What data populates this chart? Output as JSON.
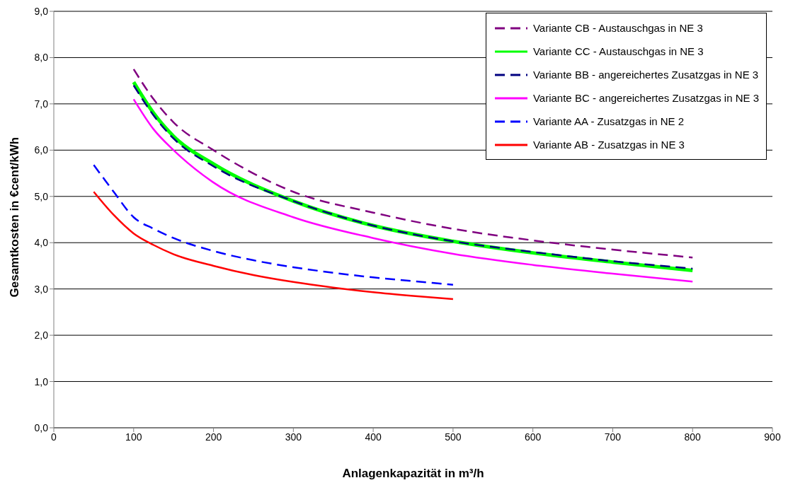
{
  "chart_data": {
    "type": "line",
    "xlabel": "Anlagenkapazität in m³/h",
    "ylabel": "Gesamtkosten in €cent/kWh",
    "xlim": [
      0,
      900
    ],
    "xticks": [
      0,
      100,
      200,
      300,
      400,
      500,
      600,
      700,
      800,
      900
    ],
    "ylim": [
      0,
      9
    ],
    "yticks": [
      {
        "value": 0,
        "label": "0,0"
      },
      {
        "value": 1,
        "label": "1,0"
      },
      {
        "value": 2,
        "label": "2,0"
      },
      {
        "value": 3,
        "label": "3,0"
      },
      {
        "value": 4,
        "label": "4,0"
      },
      {
        "value": 5,
        "label": "5,0"
      },
      {
        "value": 6,
        "label": "6,0"
      },
      {
        "value": 7,
        "label": "7,0"
      },
      {
        "value": 8,
        "label": "8,0"
      },
      {
        "value": 9,
        "label": "9,0"
      }
    ],
    "grid": "y",
    "legend": "top right",
    "marker": "none",
    "series": [
      {
        "name": "Variante CB - Austauschgas in NE 3",
        "color": "#800080",
        "line_style": "dashed",
        "x": [
          100,
          125,
          150,
          200,
          300,
          400,
          500,
          600,
          700,
          800
        ],
        "values": [
          7.75,
          7.1,
          6.6,
          6.0,
          5.1,
          4.65,
          4.3,
          4.05,
          3.85,
          3.68
        ]
      },
      {
        "name": "Variante CC - Austauschgas in NE 3",
        "color": "#00ff00",
        "line_style": "solid",
        "x": [
          100,
          125,
          150,
          200,
          300,
          400,
          500,
          600,
          700,
          800
        ],
        "values": [
          7.47,
          6.8,
          6.3,
          5.7,
          4.9,
          4.37,
          4.03,
          3.78,
          3.58,
          3.4
        ]
      },
      {
        "name": "Variante BB - angereichertes Zusatzgas in NE 3",
        "color": "#000080",
        "line_style": "dashed",
        "x": [
          100,
          125,
          150,
          200,
          300,
          400,
          500,
          600,
          700,
          800
        ],
        "values": [
          7.4,
          6.75,
          6.25,
          5.65,
          4.9,
          4.37,
          4.03,
          3.8,
          3.6,
          3.44
        ]
      },
      {
        "name": "Variante BC - angereichertes Zusatzgas in NE 3",
        "color": "#ff00ff",
        "line_style": "solid",
        "x": [
          100,
          125,
          150,
          200,
          300,
          400,
          500,
          600,
          700,
          800
        ],
        "values": [
          7.1,
          6.45,
          6.0,
          5.3,
          4.55,
          4.1,
          3.76,
          3.52,
          3.33,
          3.16
        ]
      },
      {
        "name": "Variante AA - Zusatzgas in NE 2",
        "color": "#0000ff",
        "line_style": "dashed",
        "x": [
          50,
          75,
          100,
          125,
          150,
          200,
          250,
          300,
          350,
          400,
          450,
          500
        ],
        "values": [
          5.68,
          5.1,
          4.55,
          4.3,
          4.1,
          3.82,
          3.62,
          3.47,
          3.35,
          3.25,
          3.17,
          3.09
        ]
      },
      {
        "name": "Variante AB - Zusatzgas in NE 3",
        "color": "#ff0000",
        "line_style": "solid",
        "x": [
          50,
          75,
          100,
          125,
          150,
          200,
          250,
          300,
          350,
          400,
          450,
          500
        ],
        "values": [
          5.1,
          4.6,
          4.2,
          3.95,
          3.75,
          3.5,
          3.3,
          3.15,
          3.03,
          2.93,
          2.85,
          2.78
        ]
      }
    ]
  }
}
